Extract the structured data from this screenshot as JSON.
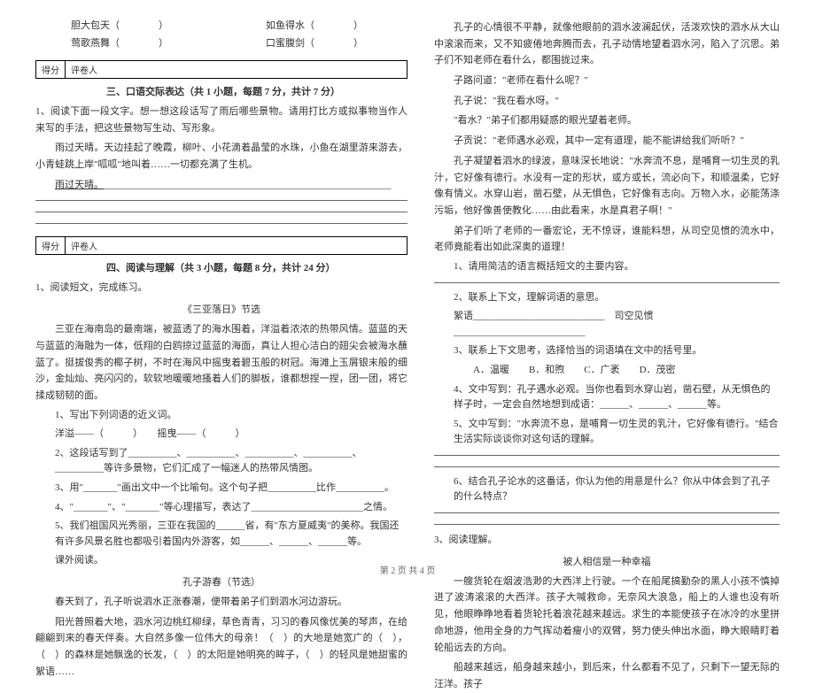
{
  "left": {
    "idioms": [
      {
        "a": "胆大包天（　　　　）",
        "b": "如鱼得水（　　　　）"
      },
      {
        "a": "莺歌燕舞（　　　　）",
        "b": "口蜜腹剑（　　　　）"
      }
    ],
    "scoreLabels": {
      "a": "得分",
      "b": "评卷人"
    },
    "sec3": {
      "title": "三、口语交际表达（共 1 小题，每题 7 分，共计 7 分）",
      "q1": "1、阅读下面一段文字。想一想这段话写了雨后哪些景物。请用打比方或拟事物当作人来写的手法，把这些景物写生动、写形象。",
      "body": "雨过天晴。天边挂起了晚霞，柳叶、小花滴着晶莹的水珠，小鱼在湖里游来游去，小青蛙跳上岸\"呱呱\"地叫着……一切都充满了生机。",
      "lead": "雨过天晴。"
    },
    "sec4": {
      "title": "四、阅读与理解（共 3 小题，每题 8 分，共计 24 分）",
      "q1": "1、阅读短文，完成练习。",
      "a1_title": "《三亚落日》节选",
      "a1_body": "三亚在海南岛的最南端，被蓝透了的海水围着，洋溢着浓浓的热带风情。蓝蓝的天与蓝蓝的海融为一体，低翔的白鸥掠过蓝蓝的海面，真让人担心洁白的翅尖会被海水蘸蓝了。挺拔俊秀的椰子树，不时在海风中摇曳着碧玉般的树冠。海滩上玉屑银末般的细沙，金灿灿、亮闪闪的，软软地暖暖地搔着人们的脚板，谁都想捏一捏，团一团，将它揉成韧韧的面。",
      "a1_q1": "1、写出下列词语的近义词。",
      "a1_q1_blank": "洋溢——（　　　）　　摇曳——（　　　）",
      "a1_q2": "2、这段话写到了__________、__________、__________、__________、__________等许多景物，它们汇成了一幅迷人的热带风情图。",
      "a1_q3": "3、用\"_______\"画出文中一个比喻句。这个句子把__________比作__________。",
      "a1_q4": "4、\"_______\"、\"_______\"等心理描写，表达了_______________________之情。",
      "a1_q5": "5、我们祖国风光秀丽，三亚在我国的______省，有\"东方夏威夷\"的美称。我国还有许多风景名胜也都吸引着国内外游客，如______、______、______等。",
      "a1_q6": "课外阅读。",
      "a2_title": "孔子游春（节选）",
      "a2_p1": "春天到了，孔子听说泗水正涨春潮，便带着弟子们到泗水河边游玩。",
      "a2_p2": "阳光普照着大地，泗水河边桃红柳绿，草色青青，习习的春风像优美的琴声，在给翩翩到来的春天伴奏。大自然多像一位伟大的母亲！（　）的大地是她宽广的（　），（　）的森林是她飘逸的长发，（　）的太阳是她明亮的眸子，（　）的轻风是她甜蜜的絮语……"
    }
  },
  "right": {
    "p1": "孔子的心情很不平静，就像他眼前的泗水波澜起伏，活泼欢快的泗水从大山中滚滚而来，又不知疲倦地奔腾而去，孔子动情地望着泗水河，陷入了沉思。弟子们不知老师在看什么，都围拢过来。",
    "p2": "子路问道：\"老师在看什么呢？\"",
    "p3": "孔子说：\"我在看水呀。\"",
    "p4": "\"看水？\"弟子们都用疑惑的眼光望着老师。",
    "p5": "子贡说：\"老师遇水必观，其中一定有道理，能不能讲给我们听听？\"",
    "p6": "孔子凝望着泗水的绿波，意味深长地说：\"水奔流不息，是哺育一切生灵的乳汁，它好像有德行。水没有一定的形状，或方或长，流必向下，和顺温柔，它好像有情义。水穿山岩，凿石壁，从无惧色，它好像有志向。万物入水，必能荡涤污垢，他好像善使教化……由此看来，水是真君子啊！\"",
    "p7": "弟子们听了老师的一番宏论，无不惊讶，谁能料想，从司空见惯的流水中，老师竟能看出如此深奥的道理！",
    "q1": "1、请用简洁的语言概括短文的主要内容。",
    "q2": "2、联系上下文，理解词语的意思。",
    "q2a": "絮语___________________________　司空见惯___________________________",
    "q3": "3、联系上下文思考，选择恰当的词语填在文中的括号里。",
    "q3opts": "A．温暖　　B．和煦　　C．广袤　　D．茂密",
    "q4": "4、文中写到：孔子遇水必观。当你也看到水穿山岩，凿石壁，从无惧色的样子时，一定会自然地想到成语：______、______、______等。",
    "q5": "5、文中写到：\"水奔流不息，是哺育一切生灵的乳汁，它好像有德行。\"结合生活实际谈谈你对这句话的理解。",
    "q6": "6、结合孔子论水的这番话，你认为他的用意是什么？你从中体会到了孔子的什么特点？",
    "q_read": "3、阅读理解。",
    "a3_title": "被人相信是一种幸福",
    "a3_p1": "一艘货轮在烟波浩渺的大西洋上行驶。一个在船尾搞勤杂的黑人小孩不慎掉进了波涛滚滚的大西洋。孩子大喊救命，无奈风大浪急，船上的人谁也没有听见，他眼睁睁地看着货轮托着浪花越来越远。求生的本能使孩子在冰冷的水里拼命地游，他用全身的力气挥动着瘦小的双臂，努力使头伸出水面，睁大眼睛盯着轮船远去的方向。",
    "a3_p2": "船越来越远，船身越来越小，到后来，什么都看不见了，只剩下一望无际的汪洋。孩子"
  },
  "footer": "第 2 页 共 4 页"
}
